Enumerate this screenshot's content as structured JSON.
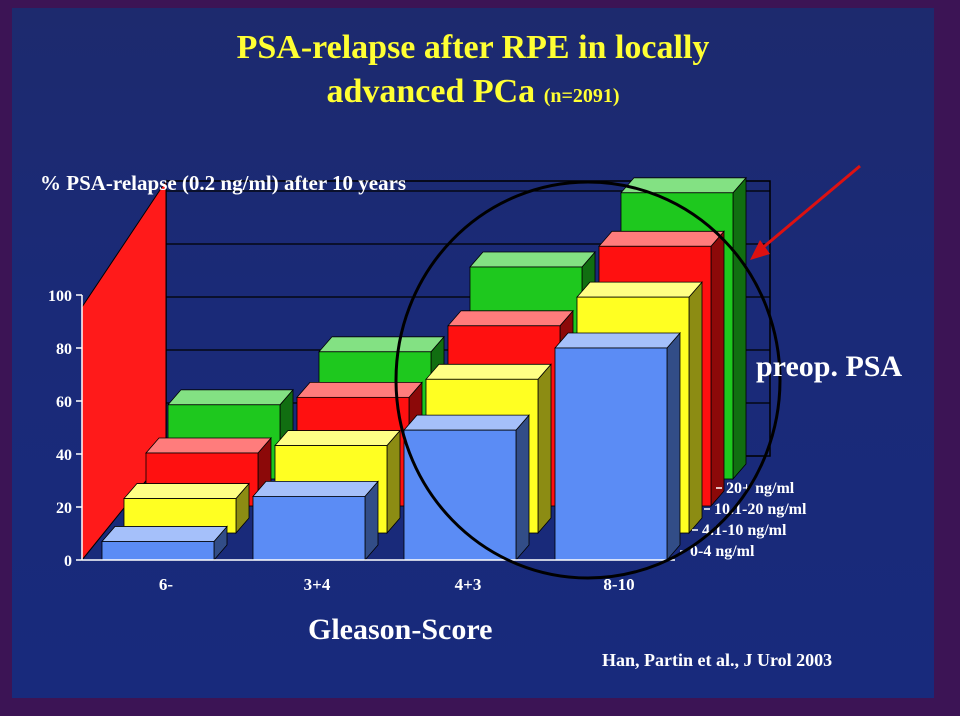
{
  "slide": {
    "title_line1": "PSA-relapse after RPE in locally",
    "title_line2": "advanced PCa",
    "title_n": "(n=2091)",
    "source": "Han, Partin et al., J Urol 2003",
    "preop_label": "preop. PSA"
  },
  "colors": {
    "background": "#1a2a78",
    "title": "#ffff33",
    "annotation_circle": "#000000",
    "arrow": "#dd1111",
    "wall": "#ff1a1a"
  },
  "chart_data": {
    "type": "bar",
    "subtype": "3d-grouped",
    "ylabel": "% PSA-relapse (0.2 ng/ml) after 10 years",
    "xlabel": "Gleason-Score",
    "ylim": [
      0,
      100
    ],
    "yticks": [
      0,
      20,
      40,
      60,
      80,
      100
    ],
    "categories": [
      "6-",
      "3+4",
      "4+3",
      "8-10"
    ],
    "series": [
      {
        "name": "0-4 ng/ml",
        "color": "#5b8cf5",
        "values": [
          7,
          24,
          49,
          80
        ]
      },
      {
        "name": "4.1-10 ng/ml",
        "color": "#ffff22",
        "values": [
          13,
          33,
          58,
          89
        ]
      },
      {
        "name": "10.1-20 ng/ml",
        "color": "#ff1010",
        "values": [
          20,
          41,
          68,
          98
        ]
      },
      {
        "name": "20+ ng/ml",
        "color": "#1ec81e",
        "values": [
          28,
          48,
          80,
          108
        ]
      }
    ],
    "grid": true,
    "legend_position": "right"
  }
}
